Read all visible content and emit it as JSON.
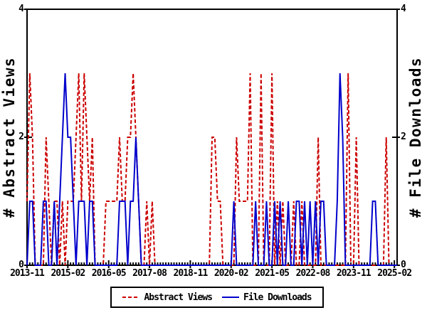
{
  "chart_data": {
    "type": "line",
    "title": "",
    "y_left_label": "# Abstract Views",
    "y_right_label": "# File Downloads",
    "ylim": [
      0,
      4
    ],
    "y_ticks": [
      "0",
      "2",
      "4"
    ],
    "y_tick_values": [
      0,
      2,
      4
    ],
    "x_start_month": "2013-11",
    "x_end_month": "2025-03",
    "n_months": 137,
    "x_tick_labels": [
      "2013-11",
      "2015-02",
      "2016-05",
      "2017-08",
      "2018-11",
      "2020-02",
      "2021-05",
      "2022-08",
      "2023-11",
      "2025-02"
    ],
    "x_tick_month_index": [
      0,
      15,
      30,
      45,
      60,
      75,
      90,
      105,
      120,
      135
    ],
    "grid": false,
    "legend_position": "bottom-center",
    "axis_color": "#000000",
    "series": [
      {
        "name": "Abstract Views",
        "color": "#cc0000",
        "style": "dashed",
        "axis": "left",
        "values": [
          1,
          3,
          2,
          0,
          0,
          0,
          0,
          2,
          1,
          0,
          1,
          1,
          0,
          1,
          0,
          1,
          1,
          1,
          2,
          3,
          1,
          3,
          2,
          1,
          2,
          0,
          0,
          0,
          0,
          1,
          1,
          1,
          1,
          1,
          2,
          1,
          1,
          2,
          2,
          3,
          2,
          1,
          0,
          0,
          1,
          0,
          1,
          0,
          0,
          0,
          0,
          0,
          0,
          0,
          0,
          0,
          0,
          0,
          0,
          0,
          0,
          0,
          0,
          0,
          0,
          0,
          0,
          0,
          2,
          2,
          1,
          1,
          0,
          0,
          0,
          0,
          0,
          2,
          1,
          1,
          1,
          1,
          3,
          0,
          0,
          0,
          3,
          0,
          0,
          0,
          3,
          0,
          1,
          0,
          1,
          0,
          0,
          0,
          1,
          0,
          0,
          1,
          0,
          0,
          0,
          0,
          0,
          2,
          0,
          0,
          0,
          0,
          0,
          0,
          0,
          0,
          0,
          0,
          3,
          0,
          0,
          2,
          0,
          0,
          0,
          0,
          0,
          0,
          0,
          0,
          0,
          0,
          2,
          0,
          0,
          0,
          0
        ]
      },
      {
        "name": "File Downloads",
        "color": "#0000cc",
        "style": "solid",
        "axis": "right",
        "values": [
          0,
          1,
          1,
          0,
          0,
          0,
          1,
          1,
          0,
          0,
          1,
          0,
          1,
          2,
          3,
          2,
          2,
          1,
          0,
          1,
          1,
          1,
          0,
          1,
          1,
          0,
          0,
          0,
          0,
          0,
          0,
          0,
          0,
          0,
          1,
          1,
          1,
          0,
          1,
          1,
          2,
          1,
          0,
          0,
          0,
          0,
          0,
          0,
          0,
          0,
          0,
          0,
          0,
          0,
          0,
          0,
          0,
          0,
          0,
          0,
          0,
          0,
          0,
          0,
          0,
          0,
          0,
          0,
          0,
          0,
          0,
          0,
          0,
          0,
          0,
          0,
          1,
          0,
          0,
          0,
          0,
          0,
          0,
          0,
          1,
          0,
          0,
          0,
          1,
          0,
          0,
          1,
          0,
          1,
          0,
          0,
          1,
          0,
          0,
          1,
          1,
          0,
          1,
          0,
          1,
          0,
          1,
          0,
          1,
          1,
          0,
          0,
          0,
          0,
          1,
          3,
          2,
          0,
          0,
          0,
          0,
          0,
          0,
          0,
          0,
          0,
          0,
          1,
          1,
          0,
          0,
          0,
          0,
          0,
          0,
          0,
          0
        ]
      }
    ]
  }
}
